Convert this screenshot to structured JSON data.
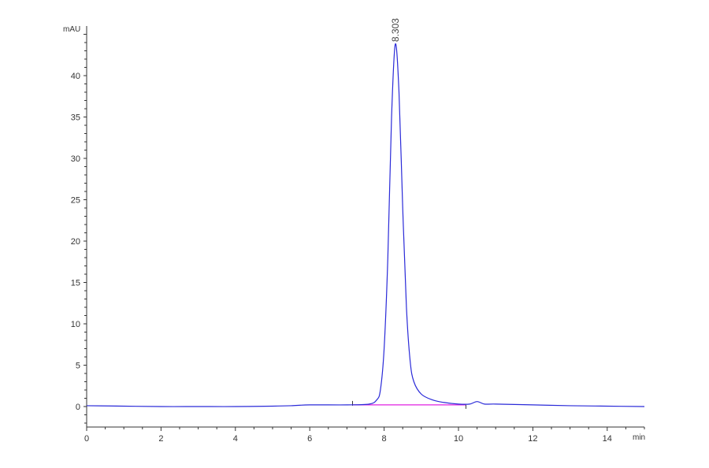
{
  "chart_data": {
    "type": "line",
    "title": "",
    "xlabel": "min",
    "ylabel": "mAU",
    "xlim": [
      0,
      15
    ],
    "ylim": [
      -2.3,
      46
    ],
    "x_ticks": [
      0,
      2,
      4,
      6,
      8,
      10,
      12,
      14
    ],
    "y_ticks": [
      0,
      5,
      10,
      15,
      20,
      25,
      30,
      35,
      40
    ],
    "grid": false,
    "series": [
      {
        "color": "#2a2ad8",
        "points": [
          [
            0,
            0.1
          ],
          [
            1,
            0.05
          ],
          [
            2,
            0
          ],
          [
            3,
            0
          ],
          [
            4,
            0
          ],
          [
            5,
            0.05
          ],
          [
            5.5,
            0.1
          ],
          [
            6,
            0.2
          ],
          [
            7,
            0.2
          ],
          [
            7.6,
            0.3
          ],
          [
            7.8,
            0.8
          ],
          [
            7.9,
            2
          ],
          [
            8.0,
            7
          ],
          [
            8.1,
            18
          ],
          [
            8.2,
            35
          ],
          [
            8.3,
            43.8
          ],
          [
            8.4,
            38
          ],
          [
            8.5,
            24
          ],
          [
            8.6,
            12
          ],
          [
            8.7,
            5.5
          ],
          [
            8.8,
            3
          ],
          [
            9.0,
            1.5
          ],
          [
            9.3,
            0.8
          ],
          [
            9.6,
            0.5
          ],
          [
            10,
            0.3
          ],
          [
            10.3,
            0.3
          ],
          [
            10.5,
            0.6
          ],
          [
            10.7,
            0.3
          ],
          [
            11,
            0.3
          ],
          [
            12,
            0.2
          ],
          [
            13,
            0.1
          ],
          [
            14,
            0.05
          ],
          [
            15,
            0.0
          ]
        ]
      }
    ],
    "baseline": {
      "color": "#e020e0",
      "x": [
        7.15,
        10.2
      ],
      "y": [
        0.2,
        0.2
      ]
    },
    "annotations": [
      {
        "text": "8.303",
        "x": 8.303,
        "y": 43.8
      }
    ]
  }
}
